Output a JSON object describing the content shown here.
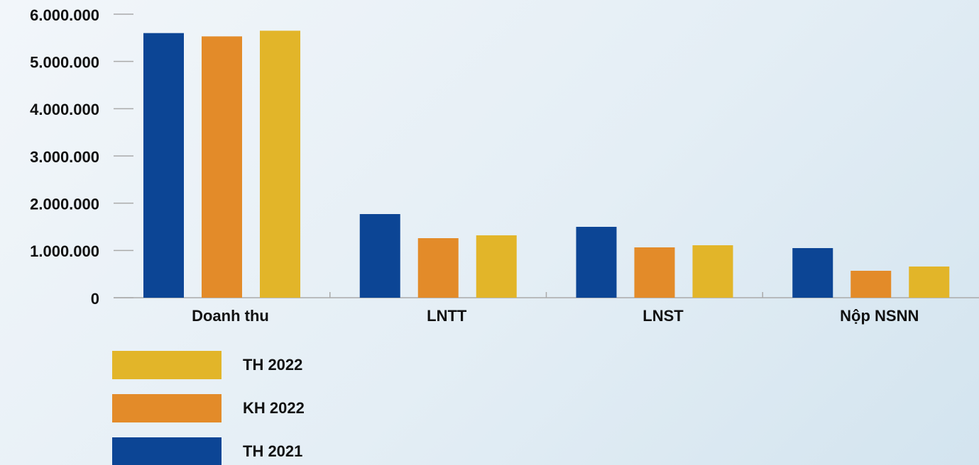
{
  "chart_data": {
    "type": "bar",
    "categories": [
      "Doanh thu",
      "LNTT",
      "LNST",
      "Nộp NSNN"
    ],
    "series": [
      {
        "name": "TH 2021",
        "color": "#0c4595",
        "values": [
          5600000,
          1770000,
          1500000,
          1050000
        ]
      },
      {
        "name": "KH 2022",
        "color": "#e38b29",
        "values": [
          5530000,
          1260000,
          1065000,
          570000
        ]
      },
      {
        "name": "TH 2022",
        "color": "#e2b529",
        "values": [
          5650000,
          1320000,
          1110000,
          660000
        ]
      }
    ],
    "ylim": [
      0,
      6000000
    ],
    "yticks": [
      0,
      {
        "value": 1000000,
        "label": "1.000.000"
      },
      {
        "value": 2000000,
        "label": "2.000.000"
      },
      {
        "value": 3000000,
        "label": "3.000.000"
      },
      {
        "value": 4000000,
        "label": "4.000.000"
      },
      {
        "value": 5000000,
        "label": "5.000.000"
      },
      {
        "value": 6000000,
        "label": "6.000.000"
      }
    ],
    "legend": "bottom-left"
  }
}
